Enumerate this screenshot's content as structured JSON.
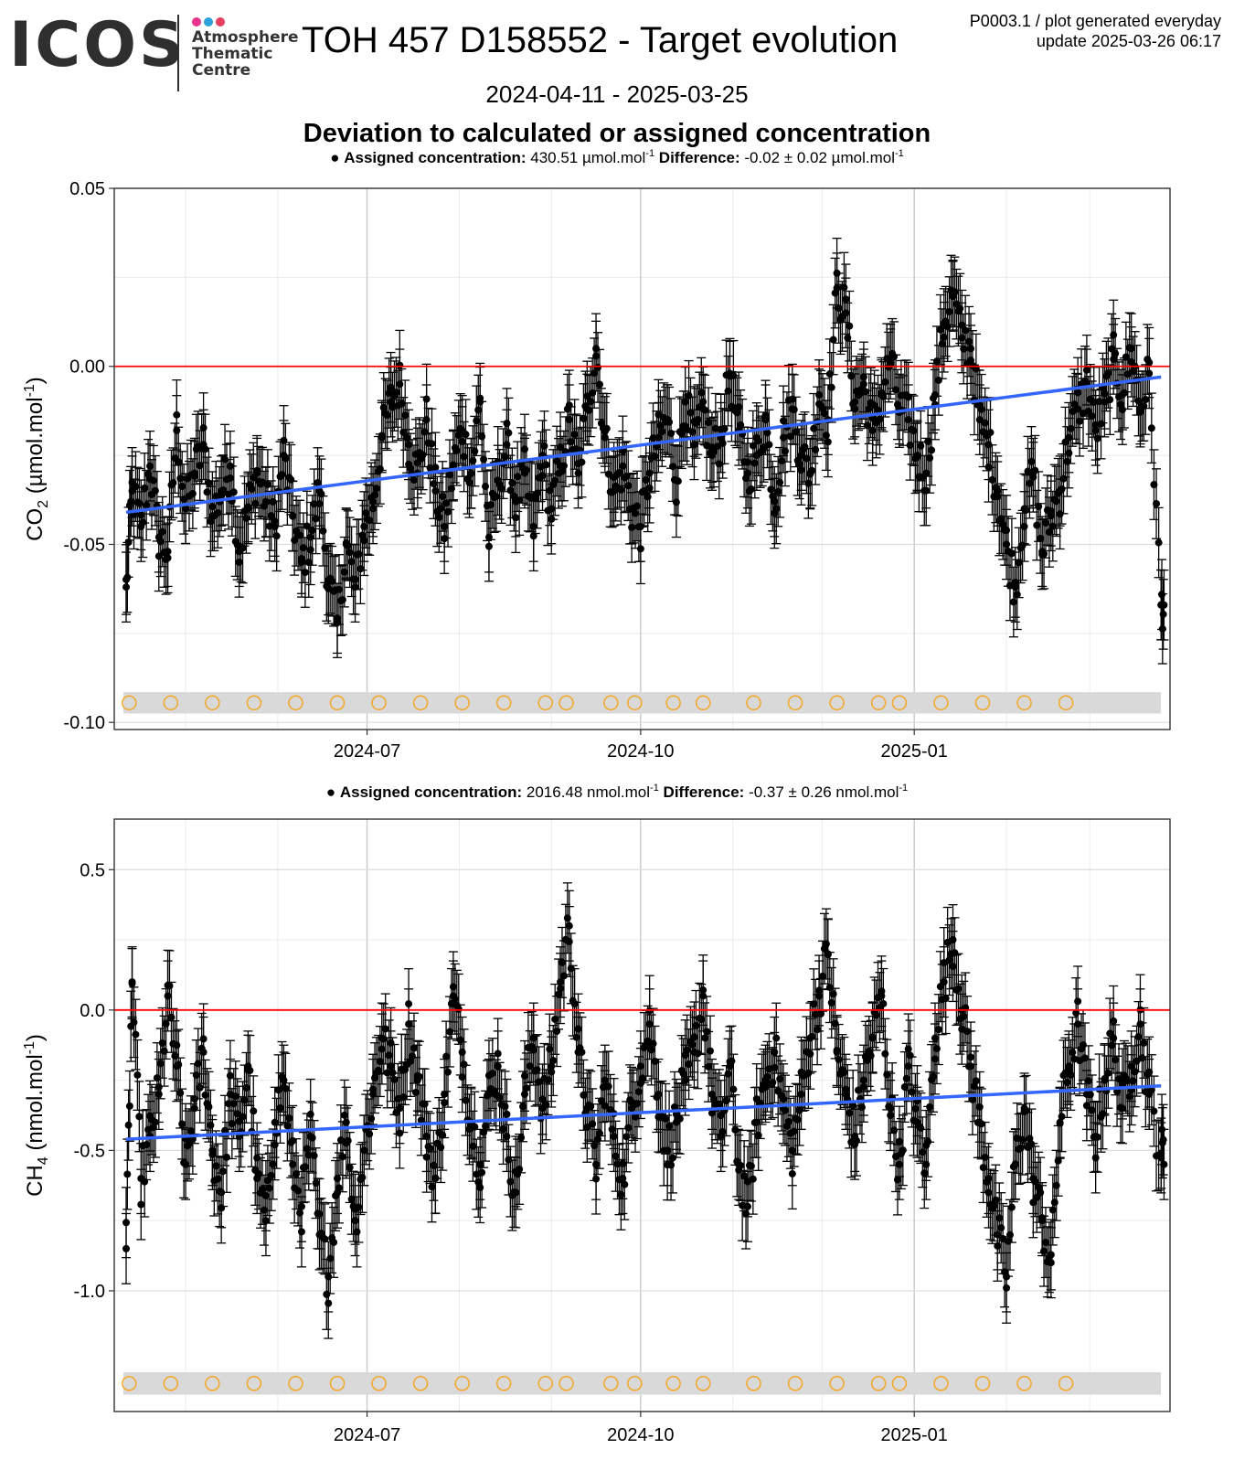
{
  "header": {
    "logo_word": "ICOS",
    "logo_lines": [
      "Atmosphere",
      "Thematic",
      "Centre"
    ],
    "logo_dot_colors": [
      "#e8348c",
      "#2aa3dc",
      "#e83e5f"
    ],
    "title": "TOH 457 D158552 - Target evolution",
    "meta_line1": "P0003.1 / plot generated everyday",
    "meta_line2": "update  2025-03-26 06:17",
    "date_range": "2024-04-11 - 2025-03-25",
    "subtitle": "Deviation to calculated or assigned concentration"
  },
  "colors": {
    "points": "#000000",
    "trend": "#3366ff",
    "zero_line": "#ff0000",
    "marker_circle": "#f5a623",
    "marker_band": "#d9d9d9"
  },
  "chart_data": [
    {
      "type": "scatter",
      "gas": "CO2",
      "ylabel_main": "CO",
      "ylabel_sub": "2",
      "ylabel_unit_a": " (µmol.mol",
      "ylabel_unit_sup": "-1",
      "ylabel_unit_b": ")",
      "legend": {
        "label": "Assigned concentration:",
        "value": "430.51 µmol.mol",
        "value_sup": "-1",
        "diff_label": "Difference:",
        "diff_value": "-0.02 ± 0.02 µmol.mol",
        "diff_sup": "-1"
      },
      "x_range": [
        "2024-04-07",
        "2025-03-28"
      ],
      "ylim": [
        -0.102,
        0.05
      ],
      "y_ticks": [
        0.05,
        0.0,
        -0.05,
        -0.1
      ],
      "y_tick_labels": [
        "0.05",
        "0.00",
        "-0.05",
        "-0.10"
      ],
      "x_ticks": [
        "2024-07-01",
        "2024-10-01",
        "2025-01-01"
      ],
      "x_tick_labels": [
        "2024-07",
        "2024-10",
        "2025-01"
      ],
      "x_minor": [
        "2024-05-01",
        "2024-06-01",
        "2024-08-01",
        "2024-09-01",
        "2024-11-01",
        "2024-12-01",
        "2025-02-01",
        "2025-03-01"
      ],
      "trend_start": {
        "x": "2024-04-11",
        "y": -0.041
      },
      "trend_end": {
        "x": "2025-03-25",
        "y": -0.003
      },
      "zero_line": 0.0,
      "error_bar": 0.0098,
      "series": {
        "x": [
          "2024-04-11",
          "2024-04-13",
          "2024-04-16",
          "2024-04-19",
          "2024-04-22",
          "2024-04-25",
          "2024-04-28",
          "2024-05-01",
          "2024-05-04",
          "2024-05-07",
          "2024-05-10",
          "2024-05-13",
          "2024-05-16",
          "2024-05-19",
          "2024-05-22",
          "2024-05-25",
          "2024-05-28",
          "2024-05-31",
          "2024-06-03",
          "2024-06-06",
          "2024-06-09",
          "2024-06-12",
          "2024-06-15",
          "2024-06-18",
          "2024-06-21",
          "2024-06-24",
          "2024-06-27",
          "2024-06-30",
          "2024-07-03",
          "2024-07-06",
          "2024-07-09",
          "2024-07-12",
          "2024-07-15",
          "2024-07-18",
          "2024-07-21",
          "2024-07-24",
          "2024-07-27",
          "2024-07-30",
          "2024-08-02",
          "2024-08-05",
          "2024-08-08",
          "2024-08-11",
          "2024-08-14",
          "2024-08-17",
          "2024-08-20",
          "2024-08-23",
          "2024-08-26",
          "2024-08-29",
          "2024-09-01",
          "2024-09-04",
          "2024-09-07",
          "2024-09-10",
          "2024-09-13",
          "2024-09-16",
          "2024-09-19",
          "2024-09-22",
          "2024-09-25",
          "2024-09-28",
          "2024-10-01",
          "2024-10-04",
          "2024-10-07",
          "2024-10-10",
          "2024-10-13",
          "2024-10-16",
          "2024-10-19",
          "2024-10-22",
          "2024-10-25",
          "2024-10-28",
          "2024-10-31",
          "2024-11-03",
          "2024-11-06",
          "2024-11-09",
          "2024-11-12",
          "2024-11-15",
          "2024-11-18",
          "2024-11-21",
          "2024-11-24",
          "2024-11-27",
          "2024-11-30",
          "2024-12-03",
          "2024-12-06",
          "2024-12-09",
          "2024-12-12",
          "2024-12-15",
          "2024-12-18",
          "2024-12-21",
          "2024-12-24",
          "2024-12-27",
          "2024-12-30",
          "2025-01-02",
          "2025-01-05",
          "2025-01-08",
          "2025-01-11",
          "2025-01-14",
          "2025-01-17",
          "2025-01-20",
          "2025-01-23",
          "2025-01-26",
          "2025-01-29",
          "2025-02-01",
          "2025-02-04",
          "2025-02-07",
          "2025-02-10",
          "2025-02-13",
          "2025-02-16",
          "2025-02-19",
          "2025-02-22",
          "2025-02-25",
          "2025-02-28",
          "2025-03-03",
          "2025-03-06",
          "2025-03-09",
          "2025-03-12",
          "2025-03-15",
          "2025-03-18",
          "2025-03-21",
          "2025-03-25"
        ],
        "y": [
          -0.062,
          -0.035,
          -0.045,
          -0.028,
          -0.048,
          -0.052,
          -0.018,
          -0.04,
          -0.03,
          -0.022,
          -0.042,
          -0.035,
          -0.028,
          -0.052,
          -0.04,
          -0.03,
          -0.038,
          -0.045,
          -0.025,
          -0.042,
          -0.055,
          -0.048,
          -0.035,
          -0.06,
          -0.072,
          -0.05,
          -0.062,
          -0.045,
          -0.038,
          -0.02,
          -0.01,
          -0.005,
          -0.022,
          -0.03,
          -0.015,
          -0.035,
          -0.045,
          -0.028,
          -0.018,
          -0.03,
          -0.01,
          -0.048,
          -0.032,
          -0.022,
          -0.038,
          -0.03,
          -0.045,
          -0.025,
          -0.04,
          -0.028,
          -0.015,
          -0.03,
          -0.012,
          0.005,
          -0.02,
          -0.035,
          -0.028,
          -0.04,
          -0.045,
          -0.03,
          -0.02,
          -0.015,
          -0.032,
          -0.01,
          -0.022,
          -0.012,
          -0.025,
          -0.02,
          -0.002,
          -0.018,
          -0.03,
          -0.025,
          -0.015,
          -0.038,
          -0.02,
          -0.012,
          -0.025,
          -0.03,
          -0.008,
          -0.015,
          0.022,
          0.015,
          -0.01,
          -0.005,
          -0.018,
          -0.008,
          0.002,
          -0.012,
          -0.015,
          -0.025,
          -0.03,
          -0.008,
          0.012,
          0.02,
          0.008,
          0.005,
          -0.015,
          -0.022,
          -0.035,
          -0.05,
          -0.062,
          -0.04,
          -0.03,
          -0.052,
          -0.042,
          -0.035,
          -0.02,
          -0.012,
          -0.005,
          -0.018,
          -0.01,
          0.002,
          -0.008,
          0.005,
          -0.012,
          -0.002,
          -0.067
        ]
      },
      "reference_markers": [
        "2024-04-12",
        "2024-04-26",
        "2024-05-10",
        "2024-05-24",
        "2024-06-07",
        "2024-06-21",
        "2024-07-05",
        "2024-07-19",
        "2024-08-02",
        "2024-08-16",
        "2024-08-30",
        "2024-09-06",
        "2024-09-21",
        "2024-09-29",
        "2024-10-12",
        "2024-10-22",
        "2024-11-08",
        "2024-11-22",
        "2024-12-06",
        "2024-12-20",
        "2024-12-27",
        "2025-01-10",
        "2025-01-24",
        "2025-02-07",
        "2025-02-21"
      ],
      "marker_y": -0.0945,
      "marker_band": [
        -0.0975,
        -0.0915
      ]
    },
    {
      "type": "scatter",
      "gas": "CH4",
      "ylabel_main": "CH",
      "ylabel_sub": "4",
      "ylabel_unit_a": " (nmol.mol",
      "ylabel_unit_sup": "-1",
      "ylabel_unit_b": ")",
      "legend": {
        "label": "Assigned concentration:",
        "value": "2016.48 nmol.mol",
        "value_sup": "-1",
        "diff_label": "Difference:",
        "diff_value": "-0.37 ± 0.26 nmol.mol",
        "diff_sup": "-1"
      },
      "x_range": [
        "2024-04-07",
        "2025-03-28"
      ],
      "ylim": [
        -1.43,
        0.68
      ],
      "y_ticks": [
        0.5,
        0.0,
        -0.5,
        -1.0
      ],
      "y_tick_labels": [
        "0.5",
        "0.0",
        "-0.5",
        "-1.0"
      ],
      "x_ticks": [
        "2024-07-01",
        "2024-10-01",
        "2025-01-01"
      ],
      "x_tick_labels": [
        "2024-07",
        "2024-10",
        "2025-01"
      ],
      "x_minor": [
        "2024-05-01",
        "2024-06-01",
        "2024-08-01",
        "2024-09-01",
        "2024-11-01",
        "2024-12-01",
        "2025-02-01",
        "2025-03-01"
      ],
      "trend_start": {
        "x": "2024-04-11",
        "y": -0.46
      },
      "trend_end": {
        "x": "2025-03-25",
        "y": -0.27
      },
      "zero_line": 0.0,
      "error_bar": 0.125,
      "series": {
        "x": [
          "2024-04-11",
          "2024-04-13",
          "2024-04-16",
          "2024-04-19",
          "2024-04-22",
          "2024-04-25",
          "2024-04-28",
          "2024-05-01",
          "2024-05-04",
          "2024-05-07",
          "2024-05-10",
          "2024-05-13",
          "2024-05-16",
          "2024-05-19",
          "2024-05-22",
          "2024-05-25",
          "2024-05-28",
          "2024-05-31",
          "2024-06-03",
          "2024-06-06",
          "2024-06-09",
          "2024-06-12",
          "2024-06-15",
          "2024-06-18",
          "2024-06-21",
          "2024-06-24",
          "2024-06-27",
          "2024-06-30",
          "2024-07-03",
          "2024-07-06",
          "2024-07-09",
          "2024-07-12",
          "2024-07-15",
          "2024-07-18",
          "2024-07-21",
          "2024-07-24",
          "2024-07-27",
          "2024-07-30",
          "2024-08-02",
          "2024-08-05",
          "2024-08-08",
          "2024-08-11",
          "2024-08-14",
          "2024-08-17",
          "2024-08-20",
          "2024-08-23",
          "2024-08-26",
          "2024-08-29",
          "2024-09-01",
          "2024-09-04",
          "2024-09-07",
          "2024-09-10",
          "2024-09-13",
          "2024-09-16",
          "2024-09-19",
          "2024-09-22",
          "2024-09-25",
          "2024-09-28",
          "2024-10-01",
          "2024-10-04",
          "2024-10-07",
          "2024-10-10",
          "2024-10-13",
          "2024-10-16",
          "2024-10-19",
          "2024-10-22",
          "2024-10-25",
          "2024-10-28",
          "2024-10-31",
          "2024-11-03",
          "2024-11-06",
          "2024-11-09",
          "2024-11-12",
          "2024-11-15",
          "2024-11-18",
          "2024-11-21",
          "2024-11-24",
          "2024-11-27",
          "2024-11-30",
          "2024-12-03",
          "2024-12-06",
          "2024-12-09",
          "2024-12-12",
          "2024-12-15",
          "2024-12-18",
          "2024-12-21",
          "2024-12-24",
          "2024-12-27",
          "2024-12-30",
          "2025-01-02",
          "2025-01-05",
          "2025-01-08",
          "2025-01-11",
          "2025-01-14",
          "2025-01-17",
          "2025-01-20",
          "2025-01-23",
          "2025-01-26",
          "2025-01-29",
          "2025-02-01",
          "2025-02-04",
          "2025-02-07",
          "2025-02-10",
          "2025-02-13",
          "2025-02-16",
          "2025-02-19",
          "2025-02-22",
          "2025-02-25",
          "2025-02-28",
          "2025-03-03",
          "2025-03-06",
          "2025-03-09",
          "2025-03-12",
          "2025-03-15",
          "2025-03-18",
          "2025-03-21",
          "2025-03-25"
        ],
        "y": [
          -0.85,
          0.1,
          -0.6,
          -0.45,
          -0.3,
          0.05,
          -0.2,
          -0.55,
          -0.35,
          -0.15,
          -0.5,
          -0.65,
          -0.3,
          -0.45,
          -0.2,
          -0.6,
          -0.75,
          -0.4,
          -0.25,
          -0.55,
          -0.7,
          -0.45,
          -0.8,
          -0.95,
          -0.6,
          -0.4,
          -0.75,
          -0.5,
          -0.3,
          -0.1,
          -0.2,
          -0.35,
          -0.05,
          -0.25,
          -0.45,
          -0.6,
          -0.3,
          0.05,
          -0.15,
          -0.4,
          -0.55,
          -0.3,
          -0.2,
          -0.45,
          -0.65,
          -0.3,
          -0.1,
          -0.35,
          -0.2,
          0.1,
          0.3,
          -0.15,
          -0.35,
          -0.55,
          -0.25,
          -0.45,
          -0.6,
          -0.35,
          -0.2,
          -0.05,
          -0.3,
          -0.5,
          -0.4,
          -0.25,
          -0.15,
          0.05,
          -0.3,
          -0.45,
          -0.2,
          -0.55,
          -0.7,
          -0.4,
          -0.25,
          -0.15,
          -0.35,
          -0.5,
          -0.3,
          -0.1,
          0.05,
          0.2,
          -0.15,
          -0.3,
          -0.45,
          -0.25,
          -0.1,
          0.05,
          -0.35,
          -0.55,
          -0.2,
          -0.4,
          -0.55,
          -0.1,
          0.1,
          0.25,
          0.0,
          -0.2,
          -0.4,
          -0.6,
          -0.8,
          -0.95,
          -0.55,
          -0.35,
          -0.6,
          -0.75,
          -0.9,
          -0.4,
          -0.2,
          -0.05,
          -0.3,
          -0.45,
          -0.25,
          -0.1,
          -0.35,
          -0.2,
          -0.05,
          -0.3,
          -0.51
        ]
      },
      "reference_markers": [
        "2024-04-12",
        "2024-04-26",
        "2024-05-10",
        "2024-05-24",
        "2024-06-07",
        "2024-06-21",
        "2024-07-05",
        "2024-07-19",
        "2024-08-02",
        "2024-08-16",
        "2024-08-30",
        "2024-09-06",
        "2024-09-21",
        "2024-09-29",
        "2024-10-12",
        "2024-10-22",
        "2024-11-08",
        "2024-11-22",
        "2024-12-06",
        "2024-12-20",
        "2024-12-27",
        "2025-01-10",
        "2025-01-24",
        "2025-02-07",
        "2025-02-21"
      ],
      "marker_y": -1.33,
      "marker_band": [
        -1.37,
        -1.29
      ]
    }
  ]
}
